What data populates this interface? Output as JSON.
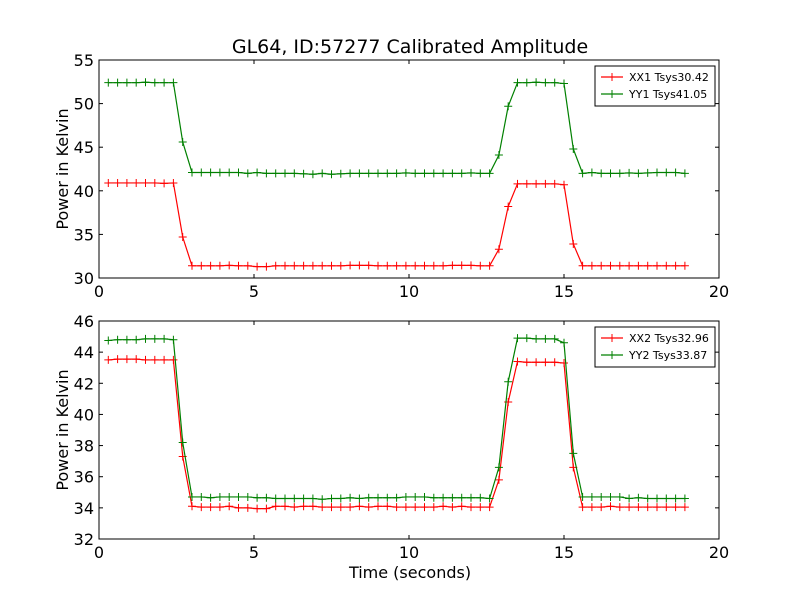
{
  "chart_data": [
    {
      "type": "line",
      "title": "GL64, ID:57277 Calibrated Amplitude",
      "xlabel": "",
      "ylabel": "Power in Kelvin",
      "xlim": [
        0,
        20
      ],
      "ylim": [
        30,
        55
      ],
      "xticks": [
        0,
        5,
        10,
        15,
        20
      ],
      "yticks": [
        30,
        35,
        40,
        45,
        50,
        55
      ],
      "legend_position": "top-right",
      "grid": false,
      "x": [
        0.3,
        0.6,
        0.9,
        1.2,
        1.5,
        1.8,
        2.1,
        2.4,
        2.7,
        3.0,
        3.3,
        3.6,
        3.9,
        4.2,
        4.5,
        4.8,
        5.1,
        5.4,
        5.7,
        6.0,
        6.3,
        6.6,
        6.9,
        7.2,
        7.5,
        7.8,
        8.1,
        8.4,
        8.7,
        9.0,
        9.3,
        9.6,
        9.9,
        10.2,
        10.5,
        10.8,
        11.1,
        11.4,
        11.7,
        12.0,
        12.3,
        12.6,
        12.9,
        13.2,
        13.5,
        13.8,
        14.1,
        14.4,
        14.7,
        15.0,
        15.3,
        15.6,
        15.9,
        16.2,
        16.5,
        16.8,
        17.1,
        17.4,
        17.7,
        18.0,
        18.3,
        18.6,
        18.9
      ],
      "series": [
        {
          "name": "XX1 Tsys30.42",
          "color": "#ff0000",
          "values": [
            40.9,
            40.9,
            40.9,
            40.9,
            40.9,
            40.9,
            40.85,
            40.9,
            34.7,
            31.4,
            31.4,
            31.4,
            31.4,
            31.45,
            31.4,
            31.4,
            31.3,
            31.3,
            31.4,
            31.4,
            31.4,
            31.4,
            31.4,
            31.4,
            31.4,
            31.4,
            31.45,
            31.45,
            31.45,
            31.4,
            31.4,
            31.4,
            31.4,
            31.4,
            31.4,
            31.4,
            31.4,
            31.45,
            31.45,
            31.45,
            31.4,
            31.4,
            33.3,
            38.2,
            40.8,
            40.8,
            40.8,
            40.8,
            40.8,
            40.7,
            33.9,
            31.4,
            31.4,
            31.4,
            31.4,
            31.4,
            31.4,
            31.4,
            31.4,
            31.4,
            31.4,
            31.4,
            31.4
          ]
        },
        {
          "name": "YY1 Tsys41.05",
          "color": "#008000",
          "values": [
            52.4,
            52.4,
            52.4,
            52.4,
            52.45,
            52.4,
            52.4,
            52.4,
            45.6,
            42.1,
            42.1,
            42.1,
            42.1,
            42.1,
            42.1,
            42.0,
            42.1,
            42.0,
            42.0,
            42.0,
            42.0,
            41.95,
            41.9,
            42.0,
            41.9,
            41.95,
            42.0,
            42.0,
            42.0,
            42.0,
            42.0,
            42.0,
            42.05,
            42.0,
            42.0,
            42.0,
            42.0,
            42.0,
            42.0,
            42.05,
            42.0,
            42.0,
            44.1,
            49.7,
            52.4,
            52.4,
            52.45,
            52.4,
            52.4,
            52.3,
            44.8,
            42.0,
            42.1,
            42.0,
            42.0,
            42.0,
            42.05,
            42.0,
            42.05,
            42.1,
            42.1,
            42.1,
            42.0
          ]
        }
      ]
    },
    {
      "type": "line",
      "title": "",
      "xlabel": "Time (seconds)",
      "ylabel": "Power in Kelvin",
      "xlim": [
        0,
        20
      ],
      "ylim": [
        32,
        46
      ],
      "xticks": [
        0,
        5,
        10,
        15,
        20
      ],
      "yticks": [
        32,
        34,
        36,
        38,
        40,
        42,
        44,
        46
      ],
      "legend_position": "top-right",
      "grid": false,
      "x": [
        0.3,
        0.6,
        0.9,
        1.2,
        1.5,
        1.8,
        2.1,
        2.4,
        2.7,
        3.0,
        3.3,
        3.6,
        3.9,
        4.2,
        4.5,
        4.8,
        5.1,
        5.4,
        5.7,
        6.0,
        6.3,
        6.6,
        6.9,
        7.2,
        7.5,
        7.8,
        8.1,
        8.4,
        8.7,
        9.0,
        9.3,
        9.6,
        9.9,
        10.2,
        10.5,
        10.8,
        11.1,
        11.4,
        11.7,
        12.0,
        12.3,
        12.6,
        12.9,
        13.2,
        13.5,
        13.8,
        14.1,
        14.4,
        14.7,
        15.0,
        15.3,
        15.6,
        15.9,
        16.2,
        16.5,
        16.8,
        17.1,
        17.4,
        17.7,
        18.0,
        18.3,
        18.6,
        18.9
      ],
      "series": [
        {
          "name": "XX2 Tsys32.96",
          "color": "#ff0000",
          "values": [
            43.5,
            43.55,
            43.55,
            43.55,
            43.5,
            43.5,
            43.5,
            43.5,
            37.3,
            34.1,
            34.05,
            34.05,
            34.05,
            34.1,
            34.0,
            34.0,
            33.95,
            33.95,
            34.1,
            34.1,
            34.05,
            34.1,
            34.1,
            34.05,
            34.05,
            34.05,
            34.05,
            34.1,
            34.05,
            34.1,
            34.1,
            34.05,
            34.05,
            34.05,
            34.05,
            34.05,
            34.1,
            34.05,
            34.1,
            34.05,
            34.05,
            34.05,
            35.8,
            40.8,
            43.4,
            43.35,
            43.35,
            43.35,
            43.35,
            43.3,
            36.6,
            34.05,
            34.05,
            34.05,
            34.1,
            34.05,
            34.05,
            34.05,
            34.05,
            34.05,
            34.05,
            34.05,
            34.05
          ]
        },
        {
          "name": "YY2 Tsys33.87",
          "color": "#008000",
          "values": [
            44.75,
            44.8,
            44.8,
            44.8,
            44.85,
            44.85,
            44.85,
            44.8,
            38.2,
            34.7,
            34.7,
            34.65,
            34.7,
            34.7,
            34.7,
            34.7,
            34.65,
            34.65,
            34.6,
            34.6,
            34.6,
            34.6,
            34.6,
            34.55,
            34.6,
            34.6,
            34.65,
            34.6,
            34.65,
            34.65,
            34.65,
            34.65,
            34.7,
            34.7,
            34.7,
            34.65,
            34.65,
            34.65,
            34.65,
            34.65,
            34.65,
            34.6,
            36.6,
            42.1,
            44.9,
            44.9,
            44.85,
            44.85,
            44.85,
            44.6,
            37.5,
            34.7,
            34.7,
            34.7,
            34.7,
            34.7,
            34.6,
            34.65,
            34.6,
            34.6,
            34.6,
            34.6,
            34.6
          ]
        }
      ]
    }
  ]
}
